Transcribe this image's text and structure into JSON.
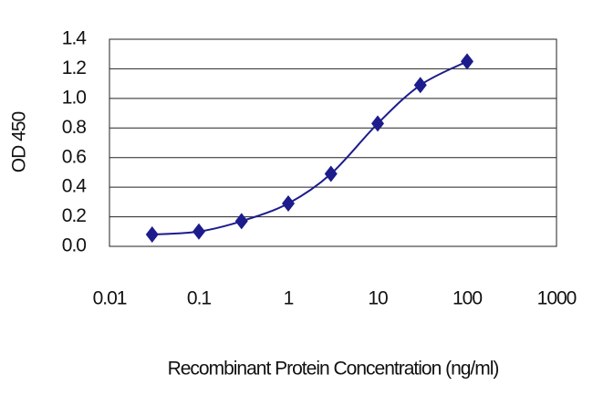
{
  "chart_data": {
    "type": "line",
    "xlabel": "Recombinant Protein Concentration (ng/ml)",
    "ylabel": "OD 450",
    "x": [
      0.03,
      0.1,
      0.3,
      1,
      3,
      10,
      30,
      100
    ],
    "series": [
      {
        "color": "#1c1c8c",
        "values": [
          0.08,
          0.1,
          0.17,
          0.29,
          0.49,
          0.83,
          1.09,
          1.25
        ]
      }
    ],
    "xlim": [
      0.01,
      1000
    ],
    "xticks": [
      0.01,
      0.1,
      1,
      10,
      100,
      1000
    ],
    "xlog": true,
    "ylim": [
      0,
      1.4
    ],
    "yticks": [
      {
        "value": 0,
        "label": "0.0"
      },
      0.2,
      0.4,
      0.6,
      0.8,
      {
        "value": 1,
        "label": "1.0"
      },
      1.2,
      1.4
    ],
    "grid": true
  }
}
